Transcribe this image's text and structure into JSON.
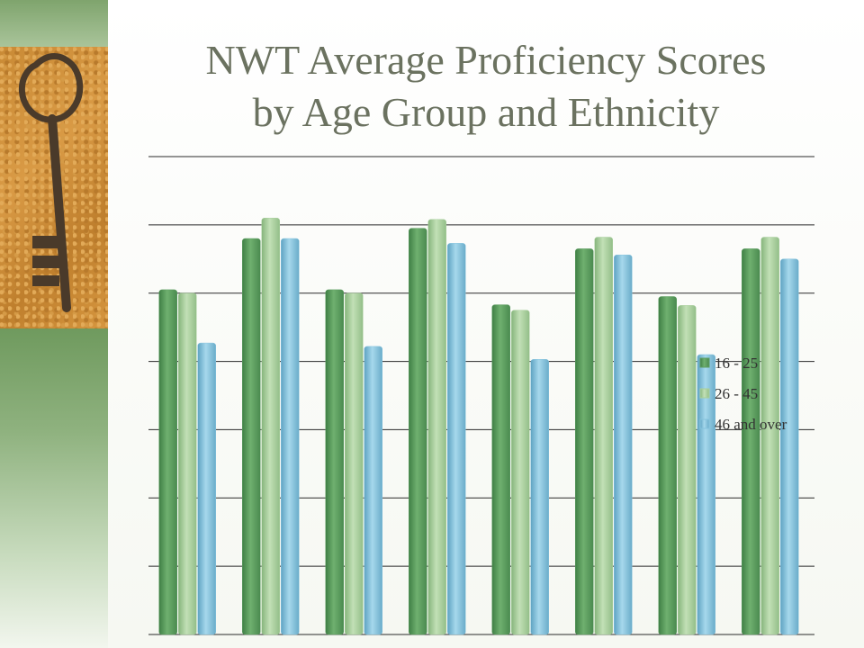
{
  "slide": {
    "title_line1": "NWT Average Proficiency Scores",
    "title_line2": "by Age Group and Ethnicity"
  },
  "colors": {
    "s1": "#5f9e63",
    "s2": "#a9cf9e",
    "s3": "#86c3dd",
    "grid": "#2a2a2a"
  },
  "chart_data": {
    "type": "bar",
    "title": "NWT Average Proficiency Scores by Age Group and Ethnicity",
    "categories": [
      "",
      "",
      "",
      "",
      "",
      "",
      "",
      ""
    ],
    "ylim": [
      0,
      7
    ],
    "grid": true,
    "legend": "right",
    "series": [
      {
        "name": "16 - 25",
        "values": [
          5.05,
          5.8,
          5.05,
          5.95,
          4.83,
          5.65,
          4.95,
          5.65
        ]
      },
      {
        "name": "26 - 45",
        "values": [
          5.0,
          6.1,
          5.0,
          6.08,
          4.75,
          5.82,
          4.82,
          5.82
        ]
      },
      {
        "name": "46 and over",
        "values": [
          4.27,
          5.8,
          4.22,
          5.73,
          4.03,
          5.56,
          4.1,
          5.5
        ]
      }
    ]
  }
}
